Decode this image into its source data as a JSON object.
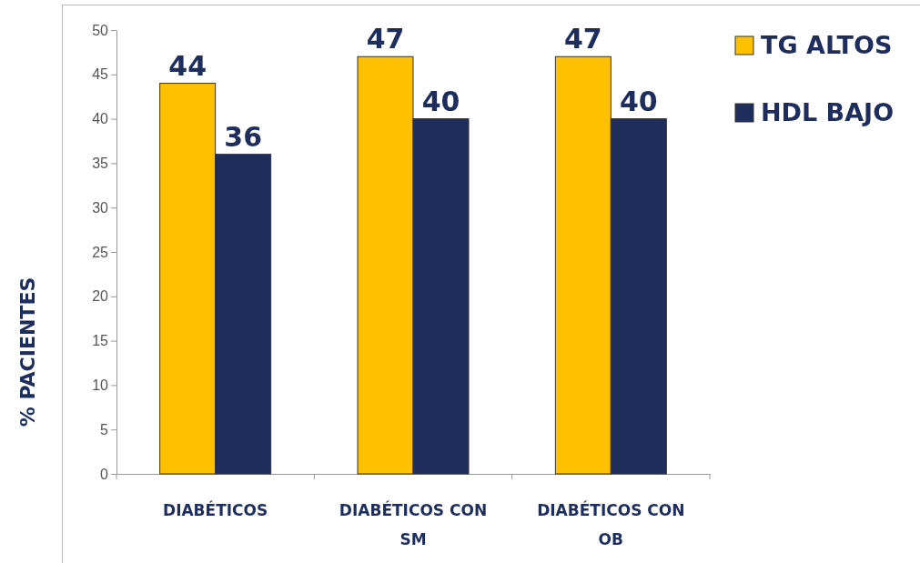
{
  "chart_data": {
    "type": "bar",
    "ylabel": "% PACIENTES",
    "categories": [
      "DIABÉTICOS",
      "DIABÉTICOS CON SM",
      "DIABÉTICOS CON OB"
    ],
    "series": [
      {
        "name": "TG ALTOS",
        "color": "#ffc000",
        "values": [
          44,
          47,
          47
        ]
      },
      {
        "name": "HDL BAJO",
        "color": "#1f2d5c",
        "values": [
          36,
          40,
          40
        ]
      }
    ],
    "ylim": [
      0,
      50
    ],
    "yticks": [
      0,
      5,
      10,
      15,
      20,
      25,
      30,
      35,
      40,
      45,
      50
    ],
    "data_labels": true,
    "legend": "top right",
    "grid": false
  }
}
